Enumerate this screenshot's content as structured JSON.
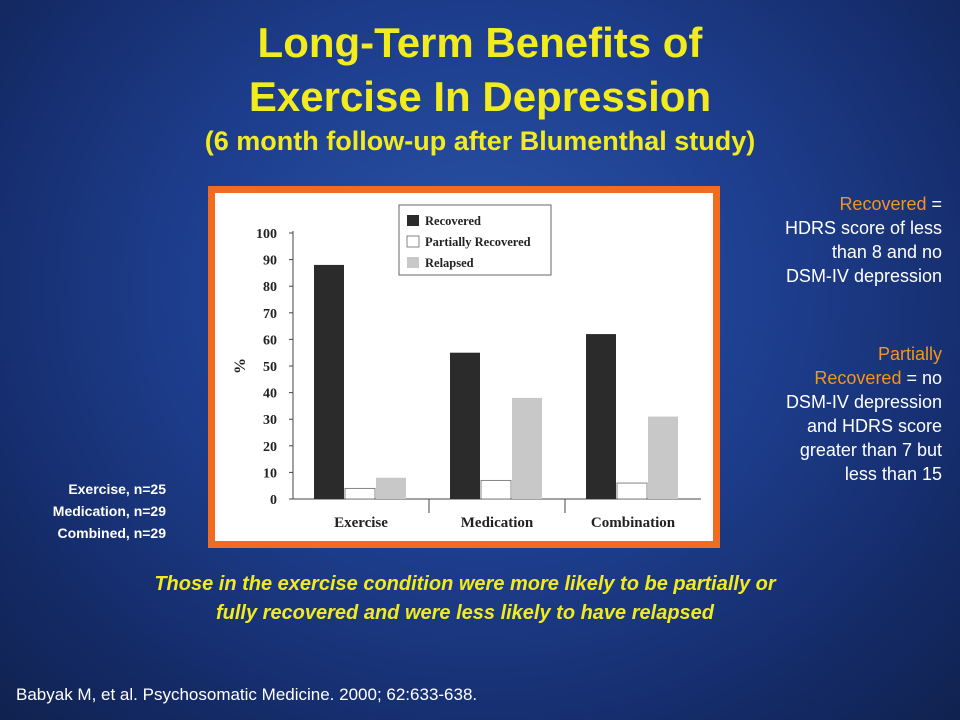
{
  "title": {
    "line1": "Long-Term Benefits of",
    "line2": "Exercise In Depression",
    "subtitle": "(6 month follow-up after Blumenthal study)"
  },
  "definitions": {
    "recovered": {
      "term": "Recovered",
      "text_lines": [
        " = ",
        "HDRS score of less",
        "than 8 and no",
        "DSM-IV depression"
      ]
    },
    "partially_recovered": {
      "term_line1": "Partially",
      "term_line2": "Recovered",
      "text_lines": [
        " = no",
        "DSM-IV depression",
        "and HDRS score",
        "greater than 7 but",
        "less than 15"
      ]
    }
  },
  "sample_sizes": [
    "Exercise, n=25",
    "Medication, n=29",
    "Combined, n=29"
  ],
  "conclusion": {
    "line1": "Those in the exercise condition were more likely to be partially or",
    "line2": "fully recovered and were less likely to have relapsed"
  },
  "citation": "Babyak M, et al. Psychosomatic Medicine. 2000; 62:633-638.",
  "colors": {
    "title": "#f2ec1e",
    "highlight": "#f7941d",
    "frame": "#f26b1f",
    "recovered_bar": "#2b2b2b",
    "partial_bar": "#ffffff",
    "relapsed_bar": "#c8c8c8"
  },
  "chart_data": {
    "type": "bar",
    "title": "",
    "xlabel": "",
    "ylabel": "%",
    "ylim": [
      0,
      100
    ],
    "yticks": [
      0,
      10,
      20,
      30,
      40,
      50,
      60,
      70,
      80,
      90,
      100
    ],
    "categories": [
      "Exercise",
      "Medication",
      "Combination"
    ],
    "legend_position": "top-right",
    "series": [
      {
        "name": "Recovered",
        "values": [
          88,
          55,
          62
        ]
      },
      {
        "name": "Partially Recovered",
        "values": [
          4,
          7,
          6
        ]
      },
      {
        "name": "Relapsed",
        "values": [
          8,
          38,
          31
        ]
      }
    ]
  }
}
